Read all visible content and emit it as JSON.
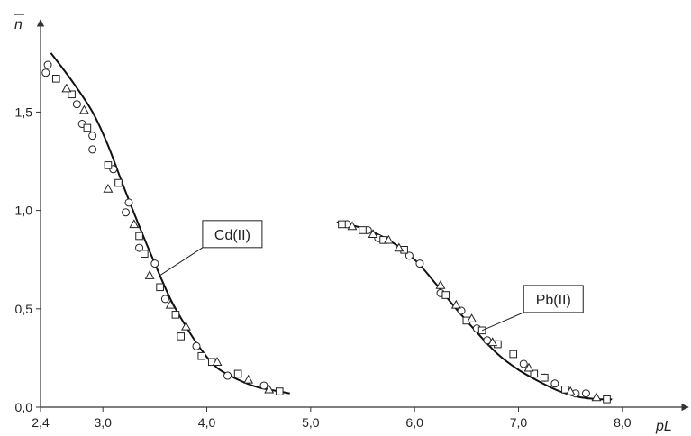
{
  "chart_data": {
    "type": "scatter",
    "ylabel": "n",
    "xlabel": "pL",
    "xlim": [
      2.4,
      8.6
    ],
    "ylim": [
      0.0,
      1.85
    ],
    "x_ticks": [
      {
        "value": 2.4,
        "label": "2,4"
      },
      {
        "value": 3.0,
        "label": "3,0"
      },
      {
        "value": 4.0,
        "label": "4,0"
      },
      {
        "value": 5.0,
        "label": "5,0"
      },
      {
        "value": 6.0,
        "label": "6,0"
      },
      {
        "value": 7.0,
        "label": "7,0"
      },
      {
        "value": 8.0,
        "label": "8,0"
      }
    ],
    "y_ticks": [
      {
        "value": 0.0,
        "label": "0,0"
      },
      {
        "value": 0.5,
        "label": "0,5"
      },
      {
        "value": 1.0,
        "label": "1,0"
      },
      {
        "value": 1.5,
        "label": "1,5"
      }
    ],
    "grid": false,
    "colors": {
      "line": "#111111",
      "marker": "#222222",
      "axis": "#333333"
    },
    "curves": [
      {
        "name": "Cd(II)",
        "x": [
          2.5,
          2.7,
          2.9,
          3.05,
          3.2,
          3.35,
          3.5,
          3.65,
          3.8,
          3.95,
          4.1,
          4.3,
          4.5,
          4.7,
          4.8
        ],
        "y": [
          1.8,
          1.66,
          1.5,
          1.33,
          1.12,
          0.92,
          0.73,
          0.55,
          0.41,
          0.29,
          0.2,
          0.14,
          0.1,
          0.08,
          0.07
        ]
      },
      {
        "name": "Pb(II)",
        "x": [
          5.25,
          5.5,
          5.75,
          6.0,
          6.2,
          6.4,
          6.6,
          6.8,
          7.0,
          7.2,
          7.4,
          7.6,
          7.8,
          7.9
        ],
        "y": [
          0.94,
          0.91,
          0.85,
          0.75,
          0.63,
          0.5,
          0.38,
          0.27,
          0.19,
          0.13,
          0.08,
          0.05,
          0.04,
          0.04
        ]
      }
    ],
    "series": [
      {
        "marker": "circle",
        "points": [
          [
            2.47,
            1.74
          ],
          [
            2.45,
            1.7
          ],
          [
            2.75,
            1.54
          ],
          [
            2.8,
            1.44
          ],
          [
            2.9,
            1.38
          ],
          [
            2.9,
            1.31
          ],
          [
            3.1,
            1.21
          ],
          [
            3.25,
            1.04
          ],
          [
            3.22,
            0.99
          ],
          [
            3.35,
            0.81
          ],
          [
            3.5,
            0.73
          ],
          [
            3.6,
            0.55
          ],
          [
            3.9,
            0.31
          ],
          [
            4.2,
            0.16
          ],
          [
            4.55,
            0.11
          ],
          [
            5.35,
            0.93
          ],
          [
            5.55,
            0.9
          ],
          [
            5.65,
            0.86
          ],
          [
            5.95,
            0.77
          ],
          [
            6.05,
            0.73
          ],
          [
            6.25,
            0.58
          ],
          [
            6.45,
            0.49
          ],
          [
            6.6,
            0.4
          ],
          [
            6.7,
            0.34
          ],
          [
            7.05,
            0.22
          ],
          [
            7.25,
            0.15
          ],
          [
            7.35,
            0.12
          ],
          [
            7.55,
            0.07
          ],
          [
            7.65,
            0.07
          ]
        ]
      },
      {
        "marker": "square",
        "points": [
          [
            2.55,
            1.67
          ],
          [
            2.7,
            1.59
          ],
          [
            2.85,
            1.42
          ],
          [
            3.05,
            1.23
          ],
          [
            3.15,
            1.14
          ],
          [
            3.35,
            0.87
          ],
          [
            3.4,
            0.78
          ],
          [
            3.55,
            0.61
          ],
          [
            3.7,
            0.47
          ],
          [
            3.75,
            0.36
          ],
          [
            3.95,
            0.26
          ],
          [
            4.05,
            0.23
          ],
          [
            4.3,
            0.17
          ],
          [
            4.7,
            0.08
          ],
          [
            5.3,
            0.93
          ],
          [
            5.5,
            0.9
          ],
          [
            5.7,
            0.85
          ],
          [
            5.9,
            0.8
          ],
          [
            6.3,
            0.57
          ],
          [
            6.5,
            0.44
          ],
          [
            6.65,
            0.39
          ],
          [
            6.8,
            0.32
          ],
          [
            6.95,
            0.27
          ],
          [
            7.15,
            0.17
          ],
          [
            7.25,
            0.15
          ],
          [
            7.45,
            0.09
          ],
          [
            7.85,
            0.04
          ]
        ]
      },
      {
        "marker": "triangle",
        "points": [
          [
            2.65,
            1.62
          ],
          [
            2.82,
            1.51
          ],
          [
            3.05,
            1.11
          ],
          [
            3.3,
            0.93
          ],
          [
            3.45,
            0.67
          ],
          [
            3.65,
            0.52
          ],
          [
            3.8,
            0.41
          ],
          [
            4.1,
            0.23
          ],
          [
            4.4,
            0.14
          ],
          [
            4.6,
            0.09
          ],
          [
            5.4,
            0.92
          ],
          [
            5.6,
            0.88
          ],
          [
            5.75,
            0.85
          ],
          [
            5.85,
            0.81
          ],
          [
            6.25,
            0.62
          ],
          [
            6.4,
            0.52
          ],
          [
            6.55,
            0.45
          ],
          [
            6.75,
            0.33
          ],
          [
            7.1,
            0.2
          ],
          [
            7.5,
            0.08
          ],
          [
            7.75,
            0.05
          ]
        ]
      }
    ],
    "annotations": [
      {
        "text": "Cd(II)",
        "target": [
          3.55,
          0.67
        ],
        "label_at": [
          3.96,
          0.88
        ]
      },
      {
        "text": "Pb(II)",
        "target": [
          6.65,
          0.39
        ],
        "label_at": [
          7.05,
          0.55
        ]
      }
    ]
  }
}
